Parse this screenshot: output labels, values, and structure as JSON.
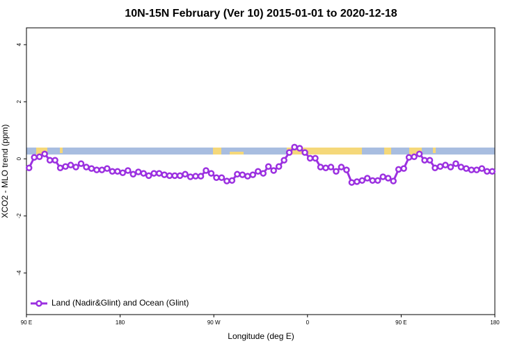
{
  "chart_data": {
    "type": "line",
    "title": "10N-15N February (Ver 10)   2015-01-01 to 2020-12-18",
    "x_label": "Longitude (deg E)",
    "y_label": "XCO2 - MLO trend (ppm)",
    "xlim": [
      90,
      540
    ],
    "ylim": [
      -5.46,
      4.59
    ],
    "xticks": [
      {
        "value": 90,
        "label": "90 E"
      },
      180,
      {
        "value": 270,
        "label": "90 W"
      },
      {
        "value": 360,
        "label": "0"
      },
      {
        "value": 450,
        "label": "90 E"
      },
      {
        "value": 540,
        "label": "180"
      }
    ],
    "yticks": [
      -4,
      -2,
      0,
      2,
      4
    ],
    "legend": "bottom-left",
    "x": [
      92.5,
      97.5,
      102.5,
      107.5,
      112.5,
      117.5,
      122.5,
      127.5,
      132.5,
      137.5,
      142.5,
      147.5,
      152.5,
      157.5,
      162.5,
      167.5,
      172.5,
      177.5,
      182.5,
      187.5,
      192.5,
      197.5,
      202.5,
      207.5,
      212.5,
      217.5,
      222.5,
      227.5,
      232.5,
      237.5,
      242.5,
      247.5,
      252.5,
      257.5,
      262.5,
      267.5,
      272.5,
      277.5,
      282.5,
      287.5,
      292.5,
      297.5,
      302.5,
      307.5,
      312.5,
      317.5,
      322.5,
      327.5,
      332.5,
      337.5,
      342.5,
      347.5,
      352.5,
      357.5,
      362.5,
      367.5,
      372.5,
      377.5,
      382.5,
      387.5,
      392.5,
      397.5,
      402.5,
      407.5,
      412.5,
      417.5,
      422.5,
      427.5,
      432.5,
      437.5,
      442.5,
      447.5,
      452.5,
      457.5,
      462.5,
      467.5,
      472.5,
      477.5,
      482.5,
      487.5,
      492.5,
      497.5,
      502.5,
      507.5,
      512.5,
      517.5,
      522.5,
      527.5,
      532.5,
      537.5
    ],
    "series": [
      {
        "name": "Land (Nadir&Glint) and Ocean (Glint)",
        "color": "#9b30e0",
        "values": [
          -0.32,
          0.05,
          0.07,
          0.17,
          -0.05,
          -0.05,
          -0.32,
          -0.27,
          -0.22,
          -0.29,
          -0.17,
          -0.29,
          -0.34,
          -0.39,
          -0.39,
          -0.34,
          -0.44,
          -0.44,
          -0.49,
          -0.41,
          -0.54,
          -0.46,
          -0.51,
          -0.59,
          -0.51,
          -0.51,
          -0.56,
          -0.59,
          -0.59,
          -0.59,
          -0.54,
          -0.63,
          -0.61,
          -0.61,
          -0.41,
          -0.51,
          -0.66,
          -0.66,
          -0.78,
          -0.76,
          -0.54,
          -0.56,
          -0.61,
          -0.56,
          -0.44,
          -0.51,
          -0.27,
          -0.41,
          -0.27,
          -0.05,
          0.22,
          0.41,
          0.37,
          0.22,
          0.02,
          0.02,
          -0.29,
          -0.32,
          -0.29,
          -0.44,
          -0.29,
          -0.39,
          -0.83,
          -0.8,
          -0.76,
          -0.68,
          -0.76,
          -0.76,
          -0.63,
          -0.68,
          -0.78,
          -0.37,
          -0.34,
          0.05,
          0.07,
          0.17,
          -0.05,
          -0.05,
          -0.32,
          -0.27,
          -0.22,
          -0.29,
          -0.17,
          -0.29,
          -0.34,
          -0.39,
          -0.39,
          -0.34,
          -0.44,
          -0.44
        ]
      }
    ]
  }
}
